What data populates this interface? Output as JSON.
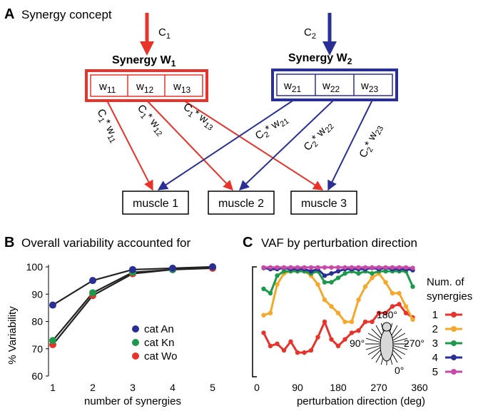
{
  "panel_a": {
    "letter": "A",
    "title": "Synergy concept",
    "c1": "C",
    "c1_sub": "1",
    "c2": "C",
    "c2_sub": "2",
    "synergy1_label": "Synergy W",
    "synergy1_sub": "1",
    "synergy2_label": "Synergy W",
    "synergy2_sub": "2",
    "synergy1_cells": [
      {
        "base": "w",
        "sub": "11"
      },
      {
        "base": "w",
        "sub": "12"
      },
      {
        "base": "w",
        "sub": "13"
      }
    ],
    "synergy2_cells": [
      {
        "base": "w",
        "sub": "21"
      },
      {
        "base": "w",
        "sub": "22"
      },
      {
        "base": "w",
        "sub": "23"
      }
    ],
    "arrow_labels_1": [
      {
        "c": "C",
        "cs": "1",
        "w": "* w",
        "ws": "11"
      },
      {
        "c": "C",
        "cs": "1",
        "w": "* w",
        "ws": "12"
      },
      {
        "c": "C",
        "cs": "1",
        "w": "* w",
        "ws": "13"
      }
    ],
    "arrow_labels_2": [
      {
        "c": "C",
        "cs": "2",
        "w": "* w",
        "ws": "21"
      },
      {
        "c": "C",
        "cs": "2",
        "w": "* w",
        "ws": "22"
      },
      {
        "c": "C",
        "cs": "2",
        "w": "* w",
        "ws": "23"
      }
    ],
    "muscles": [
      "muscle 1",
      "muscle 2",
      "muscle 3"
    ],
    "colors": {
      "synergy1": "#e8332b",
      "synergy2": "#2a2f95"
    }
  },
  "panel_b": {
    "letter": "B",
    "title": "Overall variability accounted for",
    "chart_data": {
      "type": "line",
      "xlabel": "number of synergies",
      "ylabel": "% Variability",
      "x": [
        1,
        2,
        3,
        4,
        5
      ],
      "xticks": [
        "1",
        "2",
        "3",
        "4",
        "5"
      ],
      "yticks": [
        "60",
        "70",
        "80",
        "90",
        "100"
      ],
      "ylim": [
        60,
        100
      ],
      "xlim": [
        1,
        5
      ],
      "series": [
        {
          "name": "cat An",
          "color": "#2a2f95",
          "values": [
            86,
            95,
            99,
            99.5,
            100
          ]
        },
        {
          "name": "cat Kn",
          "color": "#1a9a4a",
          "values": [
            73,
            90.5,
            98,
            99,
            100
          ]
        },
        {
          "name": "cat Wo",
          "color": "#e8332b",
          "values": [
            71.5,
            89.5,
            97.5,
            99,
            99.5
          ]
        }
      ]
    }
  },
  "panel_c": {
    "letter": "C",
    "title": "VAF by perturbation direction",
    "legend_title_1": "Num. of",
    "legend_title_2": "synergies",
    "inset_labels": {
      "top": "180°",
      "left": "90°",
      "right": "270°",
      "bottom": "0°"
    },
    "chart_data": {
      "type": "line",
      "xlabel": "perturbation direction (deg)",
      "xticks": [
        "0",
        "90",
        "180",
        "270",
        "360"
      ],
      "xlim": [
        0,
        360
      ],
      "ylim": [
        0,
        100
      ],
      "series": [
        {
          "name": "1",
          "color": "#e8332b",
          "values": [
            [
              15,
              40
            ],
            [
              30,
              28
            ],
            [
              45,
              30
            ],
            [
              60,
              24
            ],
            [
              75,
              32
            ],
            [
              90,
              22
            ],
            [
              105,
              22
            ],
            [
              120,
              24
            ],
            [
              135,
              36
            ],
            [
              150,
              50
            ],
            [
              165,
              34
            ],
            [
              180,
              28
            ],
            [
              195,
              34
            ],
            [
              210,
              40
            ],
            [
              225,
              42
            ],
            [
              240,
              50
            ],
            [
              255,
              50
            ],
            [
              270,
              58
            ],
            [
              285,
              58
            ],
            [
              300,
              64
            ],
            [
              315,
              66
            ],
            [
              330,
              58
            ],
            [
              345,
              54
            ]
          ]
        },
        {
          "name": "2",
          "color": "#f4a82c",
          "values": [
            [
              15,
              56
            ],
            [
              30,
              58
            ],
            [
              45,
              84
            ],
            [
              60,
              94
            ],
            [
              75,
              96
            ],
            [
              90,
              96
            ],
            [
              105,
              96
            ],
            [
              120,
              92
            ],
            [
              135,
              84
            ],
            [
              150,
              70
            ],
            [
              165,
              64
            ],
            [
              180,
              58
            ],
            [
              195,
              50
            ],
            [
              210,
              50
            ],
            [
              225,
              70
            ],
            [
              240,
              82
            ],
            [
              255,
              90
            ],
            [
              270,
              94
            ],
            [
              285,
              86
            ],
            [
              300,
              76
            ],
            [
              315,
              76
            ],
            [
              330,
              64
            ],
            [
              345,
              52
            ]
          ]
        },
        {
          "name": "3",
          "color": "#1a9a4a",
          "values": [
            [
              15,
              80
            ],
            [
              30,
              76
            ],
            [
              45,
              92
            ],
            [
              60,
              96
            ],
            [
              75,
              96
            ],
            [
              90,
              96
            ],
            [
              105,
              96
            ],
            [
              120,
              94
            ],
            [
              135,
              96
            ],
            [
              150,
              86
            ],
            [
              165,
              86
            ],
            [
              180,
              90
            ],
            [
              195,
              94
            ],
            [
              210,
              96
            ],
            [
              225,
              94
            ],
            [
              240,
              96
            ],
            [
              255,
              94
            ],
            [
              270,
              96
            ],
            [
              285,
              96
            ],
            [
              300,
              96
            ],
            [
              315,
              96
            ],
            [
              330,
              96
            ],
            [
              345,
              82
            ]
          ]
        },
        {
          "name": "4",
          "color": "#2a2f95",
          "values": [
            [
              15,
              99
            ],
            [
              30,
              98
            ],
            [
              45,
              98
            ],
            [
              60,
              99
            ],
            [
              75,
              98
            ],
            [
              90,
              98
            ],
            [
              105,
              98
            ],
            [
              120,
              96
            ],
            [
              135,
              98
            ],
            [
              150,
              92
            ],
            [
              165,
              94
            ],
            [
              180,
              96
            ],
            [
              195,
              98
            ],
            [
              210,
              98
            ],
            [
              225,
              98
            ],
            [
              240,
              98
            ],
            [
              255,
              99
            ],
            [
              270,
              98
            ],
            [
              285,
              99
            ],
            [
              300,
              98
            ],
            [
              315,
              98
            ],
            [
              330,
              98
            ],
            [
              345,
              97
            ]
          ]
        },
        {
          "name": "5",
          "color": "#c84aa8",
          "values": [
            [
              15,
              99.5
            ],
            [
              30,
              99.5
            ],
            [
              45,
              99.5
            ],
            [
              60,
              99.5
            ],
            [
              75,
              99.5
            ],
            [
              90,
              99.5
            ],
            [
              105,
              99.5
            ],
            [
              120,
              99.5
            ],
            [
              135,
              99.5
            ],
            [
              150,
              99.5
            ],
            [
              165,
              99.5
            ],
            [
              180,
              99.5
            ],
            [
              195,
              99.5
            ],
            [
              210,
              99.5
            ],
            [
              225,
              99.5
            ],
            [
              240,
              99.5
            ],
            [
              255,
              99.5
            ],
            [
              270,
              99.5
            ],
            [
              285,
              99.5
            ],
            [
              300,
              99.5
            ],
            [
              315,
              99.5
            ],
            [
              330,
              99.5
            ],
            [
              345,
              99
            ]
          ]
        }
      ]
    }
  }
}
